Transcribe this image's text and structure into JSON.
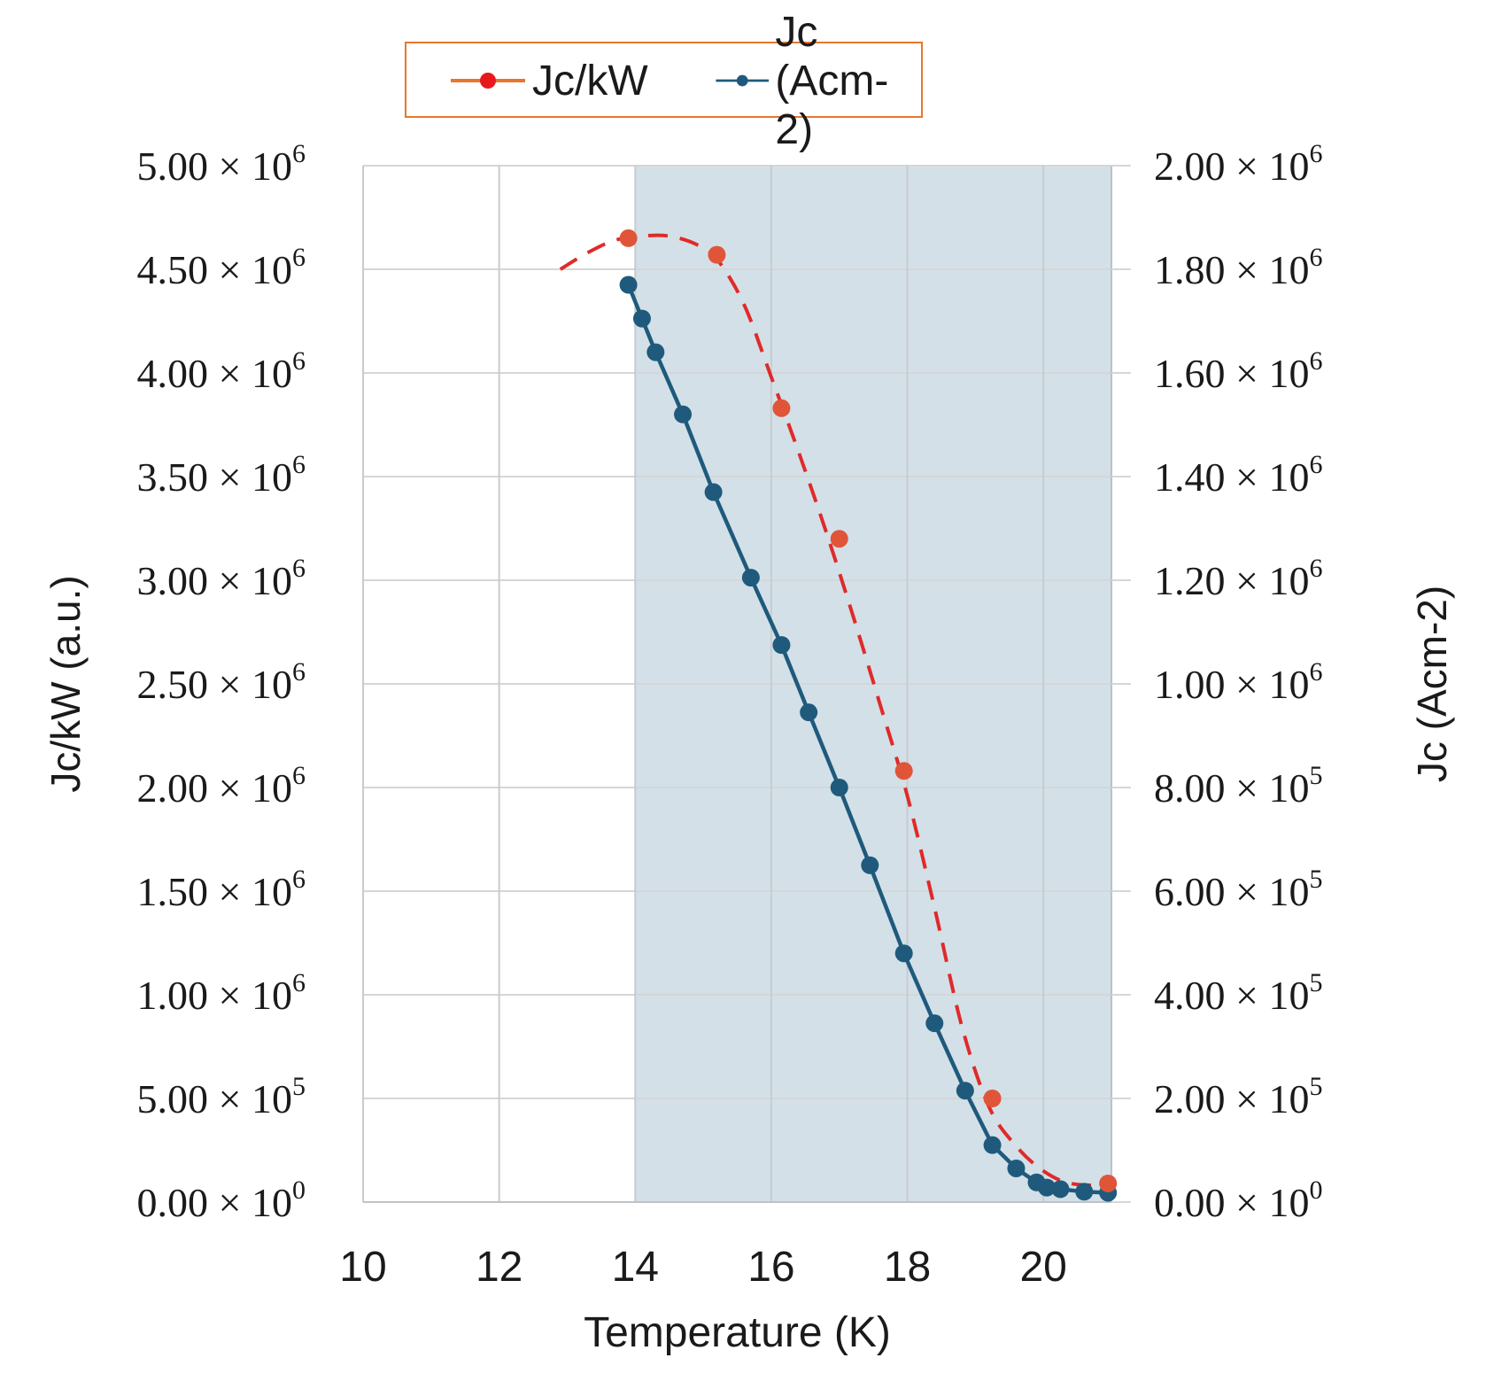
{
  "chart_data": {
    "type": "line",
    "title": "",
    "xlabel": "Temperature (K)",
    "ylabel_left": "Jc/kW (a.u.)",
    "ylabel_right": "Jc (Acm-2)",
    "xlim": [
      10,
      21
    ],
    "ylim_left": [
      0,
      5000000
    ],
    "ylim_right": [
      0,
      2000000
    ],
    "x_ticks": [
      "10",
      "12",
      "14",
      "16",
      "18",
      "20"
    ],
    "y_ticks_left": [
      {
        "mant": "0.00",
        "base": "× 10",
        "exp": "0"
      },
      {
        "mant": "5.00",
        "base": "× 10",
        "exp": "5"
      },
      {
        "mant": "1.00",
        "base": "× 10",
        "exp": "6"
      },
      {
        "mant": "1.50",
        "base": "× 10",
        "exp": "6"
      },
      {
        "mant": "2.00",
        "base": "× 10",
        "exp": "6"
      },
      {
        "mant": "2.50",
        "base": "× 10",
        "exp": "6"
      },
      {
        "mant": "3.00",
        "base": "× 10",
        "exp": "6"
      },
      {
        "mant": "3.50",
        "base": "× 10",
        "exp": "6"
      },
      {
        "mant": "4.00",
        "base": "× 10",
        "exp": "6"
      },
      {
        "mant": "4.50",
        "base": "× 10",
        "exp": "6"
      },
      {
        "mant": "5.00",
        "base": "× 10",
        "exp": "6"
      }
    ],
    "y_ticks_right": [
      {
        "mant": "0.00",
        "base": "× 10",
        "exp": "0"
      },
      {
        "mant": "2.00",
        "base": "× 10",
        "exp": "5"
      },
      {
        "mant": "4.00",
        "base": "× 10",
        "exp": "5"
      },
      {
        "mant": "6.00",
        "base": "× 10",
        "exp": "5"
      },
      {
        "mant": "8.00",
        "base": "× 10",
        "exp": "5"
      },
      {
        "mant": "1.00",
        "base": "× 10",
        "exp": "6"
      },
      {
        "mant": "1.20",
        "base": "× 10",
        "exp": "6"
      },
      {
        "mant": "1.40",
        "base": "× 10",
        "exp": "6"
      },
      {
        "mant": "1.60",
        "base": "× 10",
        "exp": "6"
      },
      {
        "mant": "1.80",
        "base": "× 10",
        "exp": "6"
      },
      {
        "mant": "2.00",
        "base": "× 10",
        "exp": "6"
      }
    ],
    "shaded_region": {
      "x_from": 14,
      "x_to": 21,
      "color": "#d3e0e7"
    },
    "grid": true,
    "legend": "top-center",
    "series": [
      {
        "name": "Jc/kW",
        "axis": "left",
        "style": "dashed-fit",
        "color": "#e02a2a",
        "marker_color": "#e05538",
        "x": [
          13.9,
          15.2,
          16.15,
          17.0,
          17.95,
          19.25,
          20.95
        ],
        "y": [
          4650000,
          4570000,
          3830000,
          3200000,
          2080000,
          500000,
          90000
        ],
        "fit_x": [
          12.9,
          13.3,
          13.7,
          14.1,
          14.5,
          14.9,
          15.2,
          15.6,
          16.0,
          16.4,
          16.8,
          17.2,
          17.6,
          18.0,
          18.4,
          18.8,
          19.2,
          19.6,
          20.0,
          20.4,
          20.95
        ],
        "fit_y": [
          4500000,
          4580000,
          4640000,
          4660000,
          4660000,
          4620000,
          4550000,
          4330000,
          3980000,
          3620000,
          3240000,
          2830000,
          2400000,
          1960000,
          1420000,
          850000,
          460000,
          270000,
          150000,
          90000,
          80000
        ]
      },
      {
        "name": "Jc (Acm-2)",
        "axis": "right",
        "style": "solid-markers",
        "color": "#1f5a7c",
        "x": [
          13.9,
          14.1,
          14.3,
          14.7,
          15.15,
          15.7,
          16.15,
          16.55,
          17.0,
          17.45,
          17.95,
          18.4,
          18.85,
          19.25,
          19.6,
          19.9,
          20.05,
          20.25,
          20.6,
          20.95
        ],
        "y": [
          1770000,
          1705000,
          1640000,
          1520000,
          1370000,
          1205000,
          1075000,
          945000,
          800000,
          650000,
          480000,
          345000,
          215000,
          110000,
          65000,
          38000,
          28000,
          25000,
          20000,
          18000
        ]
      }
    ]
  }
}
